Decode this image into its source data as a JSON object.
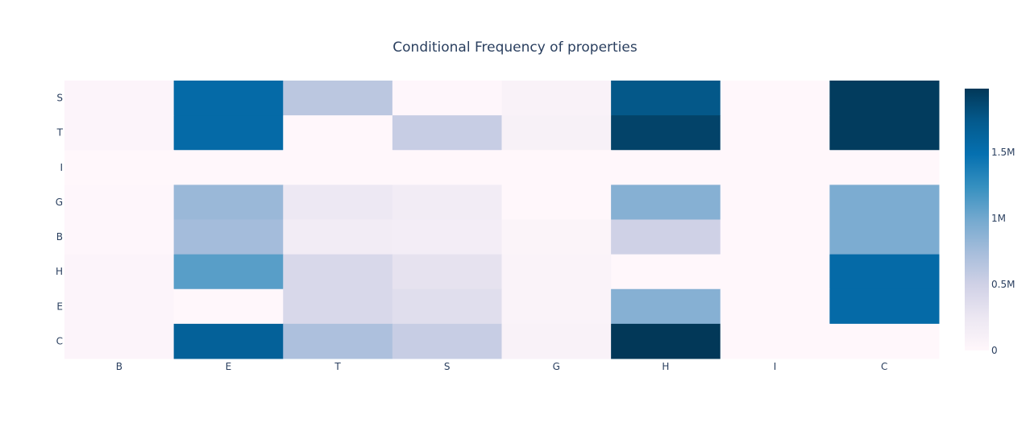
{
  "chart_data": {
    "type": "heatmap",
    "title": "Conditional Frequency of properties",
    "x_categories": [
      "B",
      "E",
      "T",
      "S",
      "G",
      "H",
      "I",
      "C"
    ],
    "y_categories": [
      "S",
      "T",
      "I",
      "G",
      "B",
      "H",
      "E",
      "C"
    ],
    "z": [
      [
        40000,
        1550000,
        620000,
        10000,
        80000,
        1750000,
        0,
        1950000
      ],
      [
        40000,
        1550000,
        0,
        550000,
        100000,
        1900000,
        0,
        1950000
      ],
      [
        0,
        0,
        0,
        0,
        0,
        0,
        0,
        0
      ],
      [
        10000,
        800000,
        230000,
        170000,
        0,
        900000,
        0,
        950000
      ],
      [
        10000,
        750000,
        170000,
        150000,
        50000,
        500000,
        0,
        950000
      ],
      [
        40000,
        1100000,
        420000,
        300000,
        60000,
        0,
        0,
        1550000
      ],
      [
        40000,
        0,
        420000,
        350000,
        60000,
        900000,
        0,
        1550000
      ],
      [
        40000,
        1650000,
        700000,
        550000,
        80000,
        1980000,
        0,
        0
      ]
    ],
    "zmin": 0,
    "zmax": 1980000,
    "colorscale": "PuBu",
    "colorbar": {
      "ticks": [
        0,
        500000,
        1000000,
        1500000
      ],
      "tick_labels": [
        "0",
        "0.5M",
        "1M",
        "1.5M"
      ]
    },
    "grid": false,
    "legend": "colorbar-right"
  }
}
